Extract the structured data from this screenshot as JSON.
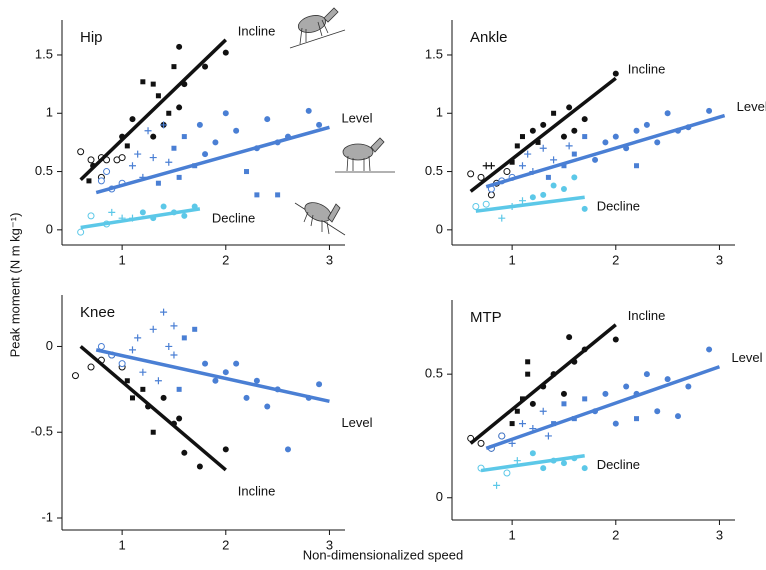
{
  "figure": {
    "xlabel": "Non-dimensionalized speed",
    "ylabel": "Peak moment (N m kg⁻¹)"
  },
  "chart_data": [
    {
      "type": "scatter",
      "title": "Hip",
      "xlim": [
        0.42,
        3.15
      ],
      "ylim": [
        -0.13,
        1.8
      ],
      "xticks": [
        1,
        2,
        3
      ],
      "yticks": [
        0,
        0.5,
        1,
        1.5
      ],
      "series": [
        {
          "name": "Incline",
          "color": "#111111",
          "x": [
            0.6,
            0.7,
            0.72,
            0.68,
            0.8,
            0.85,
            0.8,
            0.95,
            1.0,
            1.05,
            1.0,
            1.1,
            1.2,
            1.3,
            1.35,
            1.4,
            1.3,
            1.5,
            1.55,
            1.55,
            1.6,
            1.8,
            2.0,
            1.45
          ],
          "values": [
            0.67,
            0.6,
            0.55,
            0.42,
            0.62,
            0.6,
            0.45,
            0.6,
            0.62,
            0.72,
            0.8,
            0.95,
            1.27,
            1.25,
            1.15,
            0.9,
            0.8,
            1.4,
            1.05,
            1.57,
            1.25,
            1.4,
            1.52,
            1.0
          ],
          "markers": [
            "o",
            "o",
            "d",
            "s",
            "o",
            "o",
            "o",
            "o",
            "o",
            "s",
            "d",
            "d",
            "s",
            "s",
            "s",
            "d",
            "d",
            "s",
            "d",
            "d",
            "d",
            "d",
            "d",
            "s"
          ],
          "fit_x": [
            0.6,
            2.0
          ],
          "fit_y": [
            0.43,
            1.63
          ]
        },
        {
          "name": "Level",
          "color": "#4a7fd4",
          "x": [
            0.8,
            0.85,
            0.9,
            1.0,
            1.1,
            1.15,
            1.2,
            1.25,
            1.3,
            1.35,
            1.4,
            1.45,
            1.5,
            1.55,
            1.6,
            1.7,
            1.75,
            1.8,
            1.9,
            2.0,
            2.1,
            2.2,
            2.3,
            2.4,
            2.5,
            2.6,
            2.8,
            2.9,
            2.5,
            2.3
          ],
          "values": [
            0.42,
            0.5,
            0.35,
            0.4,
            0.55,
            0.65,
            0.45,
            0.85,
            0.62,
            0.4,
            0.9,
            0.58,
            0.7,
            0.45,
            0.8,
            0.55,
            0.9,
            0.65,
            0.75,
            1.0,
            0.85,
            0.5,
            0.7,
            0.95,
            0.75,
            0.8,
            1.02,
            0.9,
            0.3,
            0.3
          ],
          "markers": [
            "o",
            "o",
            "o",
            "o",
            "+",
            "+",
            "+",
            "+",
            "+",
            "s",
            "+",
            "+",
            "s",
            "s",
            "s",
            "s",
            "d",
            "d",
            "d",
            "d",
            "d",
            "s",
            "d",
            "d",
            "d",
            "d",
            "d",
            "d",
            "s",
            "s"
          ],
          "fit_x": [
            0.75,
            3.0
          ],
          "fit_y": [
            0.32,
            0.88
          ]
        },
        {
          "name": "Decline",
          "color": "#5cc8e8",
          "x": [
            0.6,
            0.7,
            0.85,
            0.9,
            1.0,
            1.1,
            1.2,
            1.3,
            1.4,
            1.5,
            1.6,
            1.7
          ],
          "values": [
            -0.02,
            0.12,
            0.05,
            0.15,
            0.1,
            0.1,
            0.15,
            0.1,
            0.2,
            0.15,
            0.12,
            0.2
          ],
          "markers": [
            "o",
            "o",
            "o",
            "+",
            "+",
            "+",
            "d",
            "d",
            "d",
            "d",
            "d",
            "d"
          ],
          "fit_x": [
            0.6,
            1.75
          ],
          "fit_y": [
            0.02,
            0.18
          ]
        }
      ]
    },
    {
      "type": "scatter",
      "title": "Ankle",
      "xlim": [
        0.42,
        3.15
      ],
      "ylim": [
        -0.13,
        1.8
      ],
      "xticks": [
        1,
        2,
        3
      ],
      "yticks": [
        0,
        0.5,
        1,
        1.5
      ],
      "series": [
        {
          "name": "Incline",
          "color": "#111111",
          "x": [
            0.6,
            0.7,
            0.75,
            0.8,
            0.85,
            0.95,
            1.0,
            1.05,
            1.1,
            1.2,
            1.25,
            1.3,
            1.4,
            1.5,
            1.55,
            1.6,
            1.7,
            2.0,
            0.8
          ],
          "values": [
            0.48,
            0.45,
            0.55,
            0.3,
            0.4,
            0.5,
            0.58,
            0.72,
            0.8,
            0.85,
            0.75,
            0.9,
            1.0,
            0.8,
            1.05,
            0.85,
            0.95,
            1.34,
            0.55
          ],
          "markers": [
            "o",
            "o",
            "+",
            "o",
            "o",
            "o",
            "s",
            "s",
            "s",
            "d",
            "s",
            "d",
            "s",
            "d",
            "d",
            "d",
            "d",
            "d",
            "+"
          ],
          "fit_x": [
            0.6,
            2.0
          ],
          "fit_y": [
            0.33,
            1.3
          ]
        },
        {
          "name": "Level",
          "color": "#4a7fd4",
          "x": [
            0.8,
            0.9,
            1.0,
            1.1,
            1.15,
            1.2,
            1.3,
            1.35,
            1.4,
            1.5,
            1.55,
            1.6,
            1.7,
            1.8,
            1.9,
            2.0,
            2.1,
            2.2,
            2.3,
            2.4,
            2.5,
            2.6,
            2.7,
            2.9,
            2.2
          ],
          "values": [
            0.35,
            0.42,
            0.45,
            0.55,
            0.65,
            0.5,
            0.7,
            0.45,
            0.6,
            0.55,
            0.72,
            0.65,
            0.8,
            0.6,
            0.75,
            0.8,
            0.7,
            0.85,
            0.9,
            0.75,
            1.0,
            0.85,
            0.88,
            1.02,
            0.55
          ],
          "markers": [
            "o",
            "o",
            "o",
            "+",
            "+",
            "+",
            "+",
            "s",
            "+",
            "s",
            "+",
            "s",
            "s",
            "d",
            "d",
            "d",
            "d",
            "d",
            "d",
            "d",
            "d",
            "d",
            "d",
            "d",
            "s"
          ],
          "fit_x": [
            0.75,
            3.05
          ],
          "fit_y": [
            0.37,
            0.98
          ]
        },
        {
          "name": "Decline",
          "color": "#5cc8e8",
          "x": [
            0.65,
            0.75,
            0.9,
            1.0,
            1.1,
            1.2,
            1.3,
            1.4,
            1.5,
            1.6,
            1.7
          ],
          "values": [
            0.2,
            0.22,
            0.1,
            0.2,
            0.25,
            0.28,
            0.3,
            0.38,
            0.35,
            0.45,
            0.18
          ],
          "markers": [
            "o",
            "o",
            "+",
            "+",
            "+",
            "d",
            "d",
            "d",
            "d",
            "d",
            "d"
          ],
          "fit_x": [
            0.65,
            1.7
          ],
          "fit_y": [
            0.16,
            0.28
          ]
        }
      ]
    },
    {
      "type": "scatter",
      "title": "Knee",
      "xlim": [
        0.42,
        3.15
      ],
      "ylim": [
        -1.07,
        0.3
      ],
      "xticks": [
        1,
        2,
        3
      ],
      "yticks": [
        -1,
        -0.5,
        0
      ],
      "series": [
        {
          "name": "Incline",
          "color": "#111111",
          "x": [
            0.55,
            0.7,
            0.8,
            0.9,
            1.0,
            1.05,
            1.1,
            1.2,
            1.25,
            1.3,
            1.4,
            1.5,
            1.55,
            1.6,
            1.75,
            2.0
          ],
          "values": [
            -0.17,
            -0.12,
            -0.08,
            -0.05,
            -0.12,
            -0.2,
            -0.3,
            -0.25,
            -0.35,
            -0.5,
            -0.3,
            -0.45,
            -0.42,
            -0.62,
            -0.7,
            -0.6
          ],
          "markers": [
            "o",
            "o",
            "o",
            "o",
            "o",
            "s",
            "s",
            "s",
            "d",
            "s",
            "d",
            "d",
            "d",
            "d",
            "d",
            "d"
          ],
          "fit_x": [
            0.6,
            2.0
          ],
          "fit_y": [
            0.0,
            -0.72
          ]
        },
        {
          "name": "Level",
          "color": "#4a7fd4",
          "x": [
            0.8,
            0.9,
            1.0,
            1.1,
            1.15,
            1.2,
            1.3,
            1.35,
            1.4,
            1.45,
            1.5,
            1.55,
            1.6,
            1.7,
            1.8,
            1.9,
            2.0,
            2.1,
            2.2,
            2.3,
            2.4,
            2.5,
            2.6,
            2.8,
            2.9,
            1.5
          ],
          "values": [
            0.0,
            -0.05,
            -0.1,
            -0.02,
            0.05,
            -0.15,
            0.1,
            -0.2,
            0.2,
            0.0,
            0.12,
            -0.25,
            0.05,
            0.1,
            -0.1,
            -0.2,
            -0.15,
            -0.1,
            -0.3,
            -0.2,
            -0.35,
            -0.25,
            -0.6,
            -0.3,
            -0.22,
            -0.05
          ],
          "markers": [
            "o",
            "o",
            "o",
            "+",
            "+",
            "+",
            "+",
            "+",
            "+",
            "+",
            "+",
            "s",
            "s",
            "s",
            "d",
            "d",
            "d",
            "d",
            "d",
            "d",
            "d",
            "d",
            "d",
            "d",
            "d",
            "+"
          ],
          "fit_x": [
            0.75,
            3.0
          ],
          "fit_y": [
            -0.02,
            -0.32
          ]
        }
      ]
    },
    {
      "type": "scatter",
      "title": "MTP",
      "xlim": [
        0.42,
        3.15
      ],
      "ylim": [
        -0.09,
        0.8
      ],
      "xticks": [
        1,
        2,
        3
      ],
      "yticks": [
        0,
        0.5
      ],
      "series": [
        {
          "name": "Incline",
          "color": "#111111",
          "x": [
            0.6,
            0.7,
            0.8,
            0.9,
            1.0,
            1.05,
            1.1,
            1.15,
            1.2,
            1.3,
            1.4,
            1.5,
            1.55,
            1.6,
            1.7,
            2.0,
            1.15
          ],
          "values": [
            0.24,
            0.22,
            0.2,
            0.25,
            0.3,
            0.35,
            0.4,
            0.5,
            0.38,
            0.45,
            0.5,
            0.42,
            0.65,
            0.55,
            0.6,
            0.64,
            0.55
          ],
          "markers": [
            "o",
            "o",
            "o",
            "o",
            "s",
            "s",
            "s",
            "s",
            "d",
            "d",
            "d",
            "d",
            "d",
            "d",
            "d",
            "d",
            "s"
          ],
          "fit_x": [
            0.6,
            2.0
          ],
          "fit_y": [
            0.22,
            0.7
          ]
        },
        {
          "name": "Level",
          "color": "#4a7fd4",
          "x": [
            0.8,
            0.9,
            1.0,
            1.1,
            1.2,
            1.3,
            1.35,
            1.4,
            1.5,
            1.6,
            1.7,
            1.8,
            1.9,
            2.0,
            2.1,
            2.2,
            2.3,
            2.4,
            2.5,
            2.6,
            2.7,
            2.9,
            2.2
          ],
          "values": [
            0.2,
            0.25,
            0.22,
            0.3,
            0.28,
            0.35,
            0.25,
            0.3,
            0.38,
            0.32,
            0.4,
            0.35,
            0.42,
            0.3,
            0.45,
            0.42,
            0.5,
            0.35,
            0.48,
            0.33,
            0.45,
            0.6,
            0.32
          ],
          "markers": [
            "o",
            "o",
            "+",
            "+",
            "+",
            "+",
            "+",
            "s",
            "s",
            "s",
            "s",
            "d",
            "d",
            "d",
            "d",
            "d",
            "d",
            "d",
            "d",
            "d",
            "d",
            "d",
            "s"
          ],
          "fit_x": [
            0.75,
            3.0
          ],
          "fit_y": [
            0.2,
            0.53
          ]
        },
        {
          "name": "Decline",
          "color": "#5cc8e8",
          "x": [
            0.7,
            0.85,
            0.95,
            1.05,
            1.2,
            1.3,
            1.4,
            1.5,
            1.6,
            1.7
          ],
          "values": [
            0.12,
            0.05,
            0.1,
            0.15,
            0.18,
            0.12,
            0.15,
            0.14,
            0.16,
            0.12
          ],
          "markers": [
            "o",
            "+",
            "o",
            "+",
            "d",
            "d",
            "d",
            "d",
            "d",
            "d"
          ],
          "fit_x": [
            0.7,
            1.7
          ],
          "fit_y": [
            0.11,
            0.17
          ]
        }
      ]
    }
  ]
}
